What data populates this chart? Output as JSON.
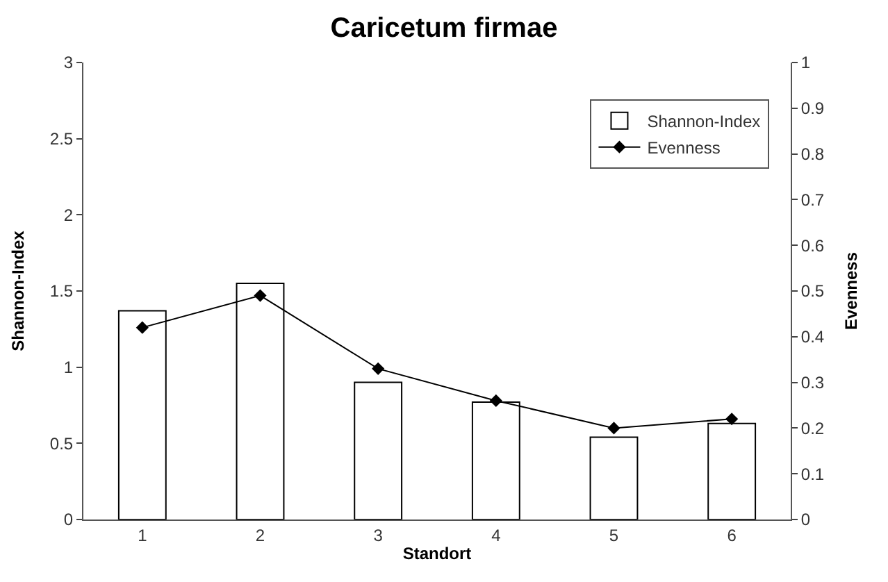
{
  "chart_data": {
    "type": "bar",
    "title": "Caricetum firmae",
    "xlabel": "Standort",
    "ylabel": "Shannon-Index",
    "y2label": "Evenness",
    "categories": [
      "1",
      "2",
      "3",
      "4",
      "5",
      "6"
    ],
    "series": [
      {
        "name": "Shannon-Index",
        "type": "bar",
        "color": "#000000",
        "values": [
          1.37,
          1.55,
          0.9,
          0.77,
          0.54,
          0.63
        ]
      },
      {
        "name": "Evenness",
        "type": "line",
        "axis": "y2",
        "color": "#000000",
        "marker": "diamond",
        "values": [
          0.42,
          0.49,
          0.33,
          0.26,
          0.2,
          0.22
        ]
      }
    ],
    "ylim": [
      0,
      3
    ],
    "yticks": [
      0,
      0.5,
      1,
      1.5,
      2,
      2.5,
      3
    ],
    "y2lim": [
      0,
      1
    ],
    "y2ticks": [
      0,
      0.1,
      0.2,
      0.3,
      0.4,
      0.5,
      0.6,
      0.7,
      0.8,
      0.9,
      1
    ],
    "grid": false,
    "legend": "top right"
  }
}
